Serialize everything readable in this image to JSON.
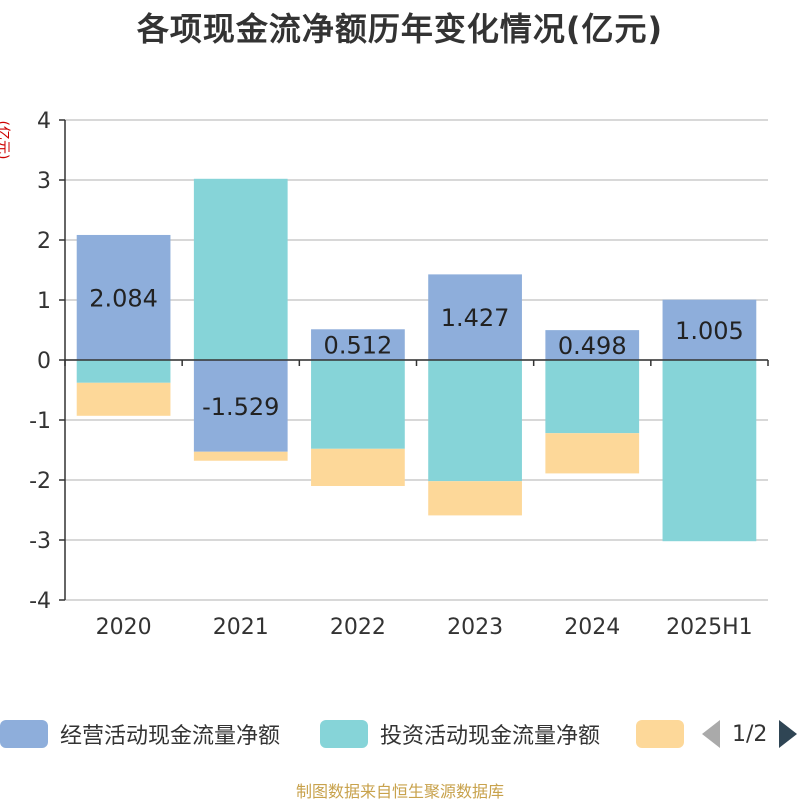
{
  "title": "各项现金流净额历年变化情况(亿元)",
  "unit_label": "(亿元)",
  "source": "制图数据来自恒生聚源数据库",
  "legend": {
    "items": [
      {
        "label": "经营活动现金流量净额",
        "color": "#8eaedb"
      },
      {
        "label": "投资活动现金流量净额",
        "color": "#86d4d8"
      },
      {
        "label": "",
        "color": "#fdd899"
      }
    ],
    "page": "1/2"
  },
  "chart_data": {
    "type": "bar",
    "stacked": true,
    "categories": [
      "2020",
      "2021",
      "2022",
      "2023",
      "2024",
      "2025H1"
    ],
    "ylim": [
      -4,
      4
    ],
    "yticks": [
      4,
      3,
      2,
      1,
      0,
      -1,
      -2,
      -3,
      -4
    ],
    "grid": true,
    "series": [
      {
        "name": "经营活动现金流量净额",
        "color": "#8eaedb",
        "values": [
          2.084,
          -1.529,
          0.512,
          1.427,
          0.498,
          1.005
        ],
        "labels": [
          "2.084",
          "-1.529",
          "0.512",
          "1.427",
          "0.498",
          "1.005"
        ]
      },
      {
        "name": "投资活动现金流量净额",
        "color": "#86d4d8",
        "values": [
          -0.38,
          3.02,
          -1.48,
          -2.02,
          -1.22,
          -3.02
        ]
      },
      {
        "color": "#fdd899",
        "values": [
          -0.55,
          -0.15,
          -0.62,
          -0.57,
          -0.67,
          0
        ]
      }
    ]
  }
}
